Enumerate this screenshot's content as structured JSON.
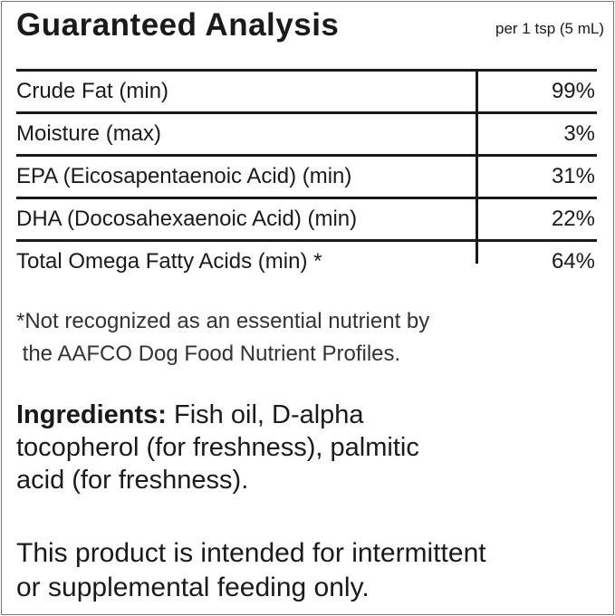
{
  "title": "Guaranteed Analysis",
  "serving": "per 1 tsp (5 mL)",
  "rows": [
    {
      "label": "Crude Fat (min)",
      "value": "99%"
    },
    {
      "label": "Moisture (max)",
      "value": "3%"
    },
    {
      "label": "EPA (Eicosapentaenoic Acid) (min)",
      "value": "31%"
    },
    {
      "label": "DHA (Docosahexaenoic Acid) (min)",
      "value": "22%"
    },
    {
      "label": "Total Omega Fatty Acids (min) *",
      "value": "64%"
    }
  ],
  "footnote": [
    "*Not recognized as an essential nutrient by",
    " the AAFCO Dog Food Nutrient Profiles."
  ],
  "ingredients": {
    "heading": "Ingredients:",
    "lines": [
      " Fish oil, D-alpha",
      "tocopherol (for freshness), palmitic",
      "acid (for freshness)."
    ]
  },
  "feeding_note": [
    "This product is intended for intermittent",
    "or supplemental feeding only."
  ]
}
